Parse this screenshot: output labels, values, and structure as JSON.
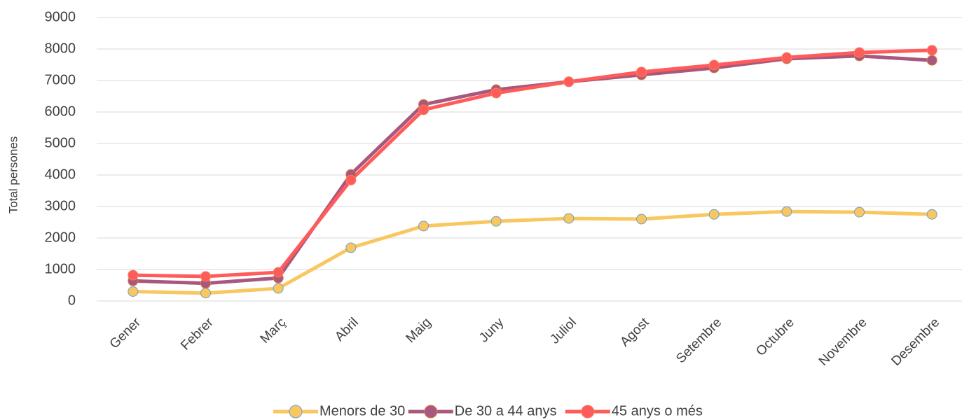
{
  "chart_data": {
    "type": "line",
    "y_label": "Total persones",
    "categories": [
      "Gener",
      "Febrer",
      "Març",
      "Abril",
      "Maig",
      "Juny",
      "Juliol",
      "Agost",
      "Setembre",
      "Octubre",
      "Novembre",
      "Desembre"
    ],
    "series": [
      {
        "name": "Menors de 30",
        "color": "#f8c760",
        "marker_edge": "#6f9fd0",
        "values": [
          300,
          250,
          400,
          1690,
          2380,
          2530,
          2620,
          2600,
          2750,
          2840,
          2820,
          2750
        ]
      },
      {
        "name": "De 30 a 44 anys",
        "color": "#a8587c",
        "marker_edge": "#e07a3a",
        "values": [
          640,
          560,
          730,
          4020,
          6240,
          6710,
          6960,
          7180,
          7400,
          7690,
          7780,
          7640
        ]
      },
      {
        "name": "45 anys o més",
        "color": "#ff5b5b",
        "marker_edge": "#f08060",
        "values": [
          820,
          780,
          910,
          3840,
          6070,
          6600,
          6960,
          7270,
          7490,
          7730,
          7890,
          7960
        ]
      }
    ],
    "ylim": [
      0,
      9000
    ],
    "yticks": [
      0,
      1000,
      2000,
      3000,
      4000,
      5000,
      6000,
      7000,
      8000,
      9000
    ],
    "grid": true,
    "legend": "bottom"
  }
}
